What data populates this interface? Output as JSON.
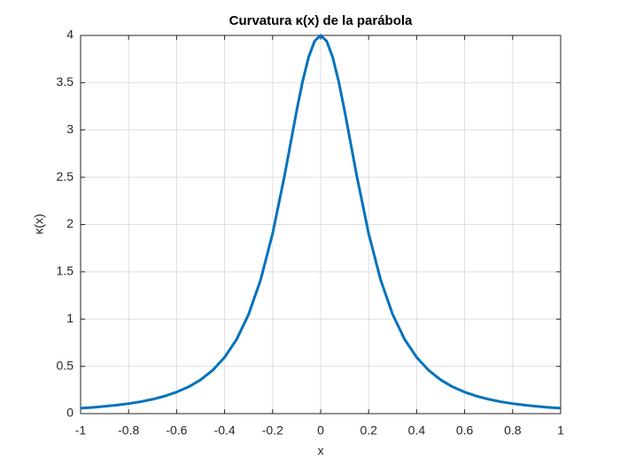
{
  "chart_data": {
    "type": "line",
    "title": "Curvatura κ(x) de la parábola",
    "xlabel": "x",
    "ylabel": "κ(x)",
    "x": [
      -1,
      -0.95,
      -0.9,
      -0.85,
      -0.8,
      -0.75,
      -0.7,
      -0.65,
      -0.6,
      -0.55,
      -0.5,
      -0.45,
      -0.4,
      -0.35,
      -0.3,
      -0.25,
      -0.2,
      -0.15,
      -0.125,
      -0.1,
      -0.075,
      -0.05,
      -0.025,
      0,
      0.025,
      0.05,
      0.075,
      0.1,
      0.125,
      0.15,
      0.2,
      0.25,
      0.3,
      0.35,
      0.4,
      0.45,
      0.5,
      0.55,
      0.6,
      0.65,
      0.7,
      0.75,
      0.8,
      0.85,
      0.9,
      0.95,
      1
    ],
    "series": [
      {
        "name": "κ(x)",
        "color": "#0072bd",
        "values": [
          0.057,
          0.066,
          0.077,
          0.09,
          0.106,
          0.126,
          0.152,
          0.185,
          0.228,
          0.283,
          0.358,
          0.458,
          0.596,
          0.785,
          1.05,
          1.414,
          1.905,
          2.522,
          2.862,
          3.202,
          3.515,
          3.771,
          3.941,
          4,
          3.941,
          3.771,
          3.515,
          3.202,
          2.862,
          2.522,
          1.905,
          1.414,
          1.05,
          0.785,
          0.596,
          0.458,
          0.358,
          0.283,
          0.228,
          0.185,
          0.152,
          0.126,
          0.106,
          0.09,
          0.077,
          0.066,
          0.057
        ]
      }
    ],
    "xlim": [
      -1,
      1
    ],
    "xticks": [
      -1,
      -0.8,
      -0.6,
      -0.4,
      -0.2,
      0,
      0.2,
      0.4,
      0.6,
      0.8,
      1
    ],
    "ylim": [
      0,
      4
    ],
    "yticks": [
      0,
      0.5,
      1,
      1.5,
      2,
      2.5,
      3,
      3.5,
      4
    ],
    "grid": true
  }
}
